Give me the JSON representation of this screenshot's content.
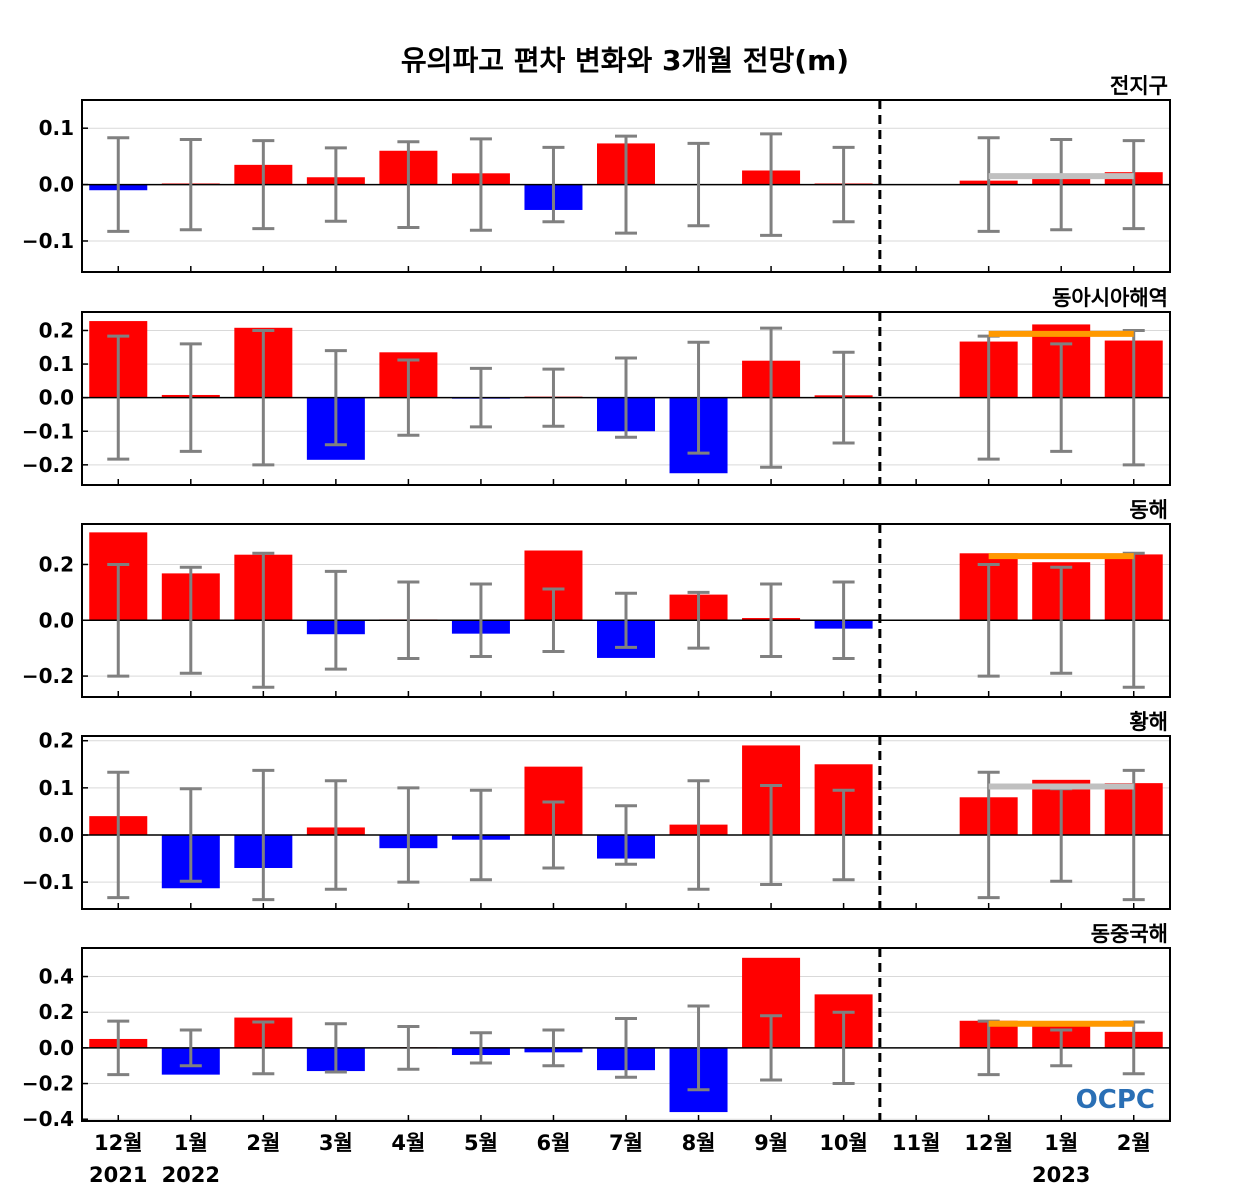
{
  "chart_data": {
    "type": "bar",
    "title": "유의파고 편차 변화와 3개월 전망(m)",
    "categories": [
      "12월",
      "1월",
      "2월",
      "3월",
      "4월",
      "5월",
      "6월",
      "7월",
      "8월",
      "9월",
      "10월",
      "11월",
      "12월",
      "1월",
      "2월"
    ],
    "year_labels": [
      {
        "category_index": 0,
        "label": "2021"
      },
      {
        "category_index": 1,
        "label": "2022"
      },
      {
        "category_index": 13,
        "label": "2023"
      }
    ],
    "forecast_divider_between": [
      10,
      11
    ],
    "colors": {
      "positive": "#ff0000",
      "negative": "#0000ff",
      "errorbar": "#808080",
      "forecast_gray": "#c0c0c0",
      "forecast_orange": "#ff9900"
    },
    "logo": "OCPC",
    "panels": [
      {
        "name": "전지구",
        "ylim": [
          -0.155,
          0.15
        ],
        "yticks": [
          -0.1,
          0.0,
          0.1
        ],
        "tick_labels": [
          "−0.1",
          "0.0",
          "0.1"
        ],
        "values": [
          -0.01,
          0.002,
          0.035,
          0.013,
          0.06,
          0.02,
          -0.045,
          0.073,
          0.0,
          0.025,
          0.002,
          0.0,
          0.007,
          0.012,
          0.022
        ],
        "errors": [
          0.083,
          0.08,
          0.078,
          0.065,
          0.076,
          0.081,
          0.066,
          0.086,
          0.073,
          0.09,
          0.066,
          null,
          0.083,
          0.08,
          0.078
        ],
        "forecast_line": {
          "value": 0.015,
          "color": "gray"
        }
      },
      {
        "name": "동아시아해역",
        "ylim": [
          -0.26,
          0.255
        ],
        "yticks": [
          -0.2,
          -0.1,
          0.0,
          0.1,
          0.2
        ],
        "tick_labels": [
          "−0.2",
          "−0.1",
          "0.0",
          "0.1",
          "0.2"
        ],
        "values": [
          0.228,
          0.008,
          0.208,
          -0.185,
          0.135,
          -0.003,
          0.003,
          -0.1,
          -0.225,
          0.11,
          0.007,
          0.0,
          0.167,
          0.218,
          0.17
        ],
        "errors": [
          0.183,
          0.16,
          0.2,
          0.14,
          0.112,
          0.087,
          0.085,
          0.118,
          0.165,
          0.207,
          0.135,
          null,
          0.183,
          0.16,
          0.2
        ],
        "forecast_line": {
          "value": 0.19,
          "color": "orange"
        }
      },
      {
        "name": "동해",
        "ylim": [
          -0.275,
          0.345
        ],
        "yticks": [
          -0.2,
          0.0,
          0.2
        ],
        "tick_labels": [
          "−0.2",
          "0.0",
          "0.2"
        ],
        "values": [
          0.315,
          0.168,
          0.235,
          -0.05,
          0.003,
          -0.048,
          0.25,
          -0.135,
          0.092,
          0.008,
          -0.03,
          0.0,
          0.24,
          0.208,
          0.236
        ],
        "errors": [
          0.2,
          0.19,
          0.24,
          0.175,
          0.137,
          0.13,
          0.112,
          0.097,
          0.1,
          0.13,
          0.137,
          null,
          0.2,
          0.19,
          0.24
        ],
        "forecast_line": {
          "value": 0.23,
          "color": "orange"
        }
      },
      {
        "name": "황해",
        "ylim": [
          -0.157,
          0.21
        ],
        "yticks": [
          -0.1,
          0.0,
          0.1,
          0.2
        ],
        "tick_labels": [
          "−0.1",
          "0.0",
          "0.1",
          "0.2"
        ],
        "values": [
          0.04,
          -0.113,
          -0.07,
          0.016,
          -0.028,
          -0.01,
          0.145,
          -0.05,
          0.022,
          0.19,
          0.15,
          0.0,
          0.08,
          0.117,
          0.11
        ],
        "errors": [
          0.133,
          0.098,
          0.137,
          0.115,
          0.1,
          0.095,
          0.07,
          0.062,
          0.115,
          0.105,
          0.095,
          null,
          0.133,
          0.098,
          0.137
        ],
        "forecast_line": {
          "value": 0.103,
          "color": "gray"
        }
      },
      {
        "name": "동중국해",
        "ylim": [
          -0.41,
          0.56
        ],
        "yticks": [
          -0.4,
          -0.2,
          0.0,
          0.2,
          0.4
        ],
        "tick_labels": [
          "−0.4",
          "−0.2",
          "0.0",
          "0.2",
          "0.4"
        ],
        "values": [
          0.05,
          -0.15,
          0.17,
          -0.13,
          0.003,
          -0.04,
          -0.025,
          -0.125,
          -0.36,
          0.505,
          0.3,
          0.0,
          0.152,
          0.145,
          0.09
        ],
        "errors": [
          0.15,
          0.1,
          0.145,
          0.135,
          0.12,
          0.085,
          0.1,
          0.165,
          0.235,
          0.18,
          0.2,
          null,
          0.15,
          0.1,
          0.145
        ],
        "forecast_line": {
          "value": 0.135,
          "color": "orange"
        }
      }
    ]
  }
}
